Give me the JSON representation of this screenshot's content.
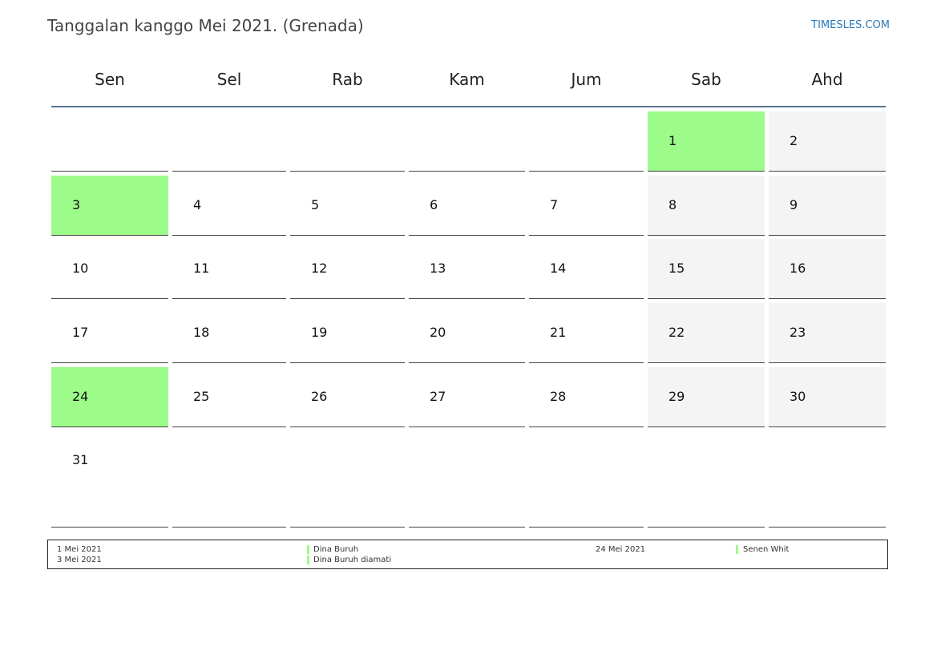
{
  "header": {
    "title": "Tanggalan kanggo Mei 2021. (Grenada)",
    "brand": "TIMESLES.COM"
  },
  "colors": {
    "holiday": "#9dfb89",
    "weekend": "#f4f4f4",
    "header_rule": "#5a7493",
    "brand": "#2a7ab8"
  },
  "weekdays": [
    "Sen",
    "Sel",
    "Rab",
    "Kam",
    "Jum",
    "Sab",
    "Ahd"
  ],
  "weeks": [
    [
      "",
      "",
      "",
      "",
      "",
      "1",
      "2"
    ],
    [
      "3",
      "4",
      "5",
      "6",
      "7",
      "8",
      "9"
    ],
    [
      "10",
      "11",
      "12",
      "13",
      "14",
      "15",
      "16"
    ],
    [
      "17",
      "18",
      "19",
      "20",
      "21",
      "22",
      "23"
    ],
    [
      "24",
      "25",
      "26",
      "27",
      "28",
      "29",
      "30"
    ],
    [
      "31",
      "",
      "",
      "",
      "",
      "",
      ""
    ]
  ],
  "holidays": [
    "1",
    "3",
    "24"
  ],
  "legend": [
    {
      "date": "1 Mei 2021",
      "name": "Dina Buruh"
    },
    {
      "date": "3 Mei 2021",
      "name": "Dina Buruh diamati"
    },
    {
      "date": "24 Mei 2021",
      "name": "Senen Whit"
    }
  ]
}
